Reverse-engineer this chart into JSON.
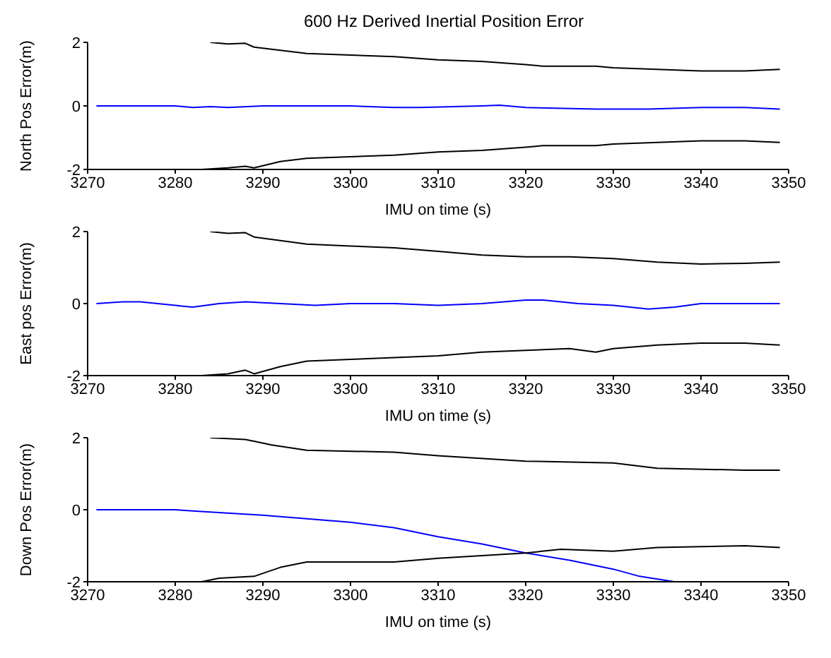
{
  "chart_data": [
    {
      "type": "line",
      "title": "600 Hz Derived Inertial Position Error",
      "xlabel": "IMU on time (s)",
      "ylabel": "North Pos Error(m)",
      "xlim": [
        3270,
        3350
      ],
      "xticks": [
        3270,
        3280,
        3290,
        3300,
        3310,
        3320,
        3330,
        3340,
        3350
      ],
      "ylim": [
        -2,
        2
      ],
      "yticks": [
        -2,
        0,
        2
      ],
      "grid": false,
      "legend": false,
      "marker": "none",
      "line_style": "solid",
      "series": [
        {
          "color": "#0000ff",
          "x": [
            3271,
            3280,
            3282,
            3284,
            3286,
            3290,
            3300,
            3305,
            3308,
            3315,
            3317,
            3320,
            3328,
            3334,
            3340,
            3345,
            3349
          ],
          "values": [
            0,
            0,
            -0.05,
            -0.02,
            -0.05,
            0,
            0,
            -0.05,
            -0.05,
            0,
            0.02,
            -0.05,
            -0.1,
            -0.1,
            -0.05,
            -0.05,
            -0.1
          ]
        },
        {
          "color": "#000000",
          "x": [
            3284,
            3286,
            3288,
            3289,
            3292,
            3295,
            3300,
            3305,
            3310,
            3315,
            3320,
            3322,
            3328,
            3330,
            3335,
            3340,
            3345,
            3349
          ],
          "values": [
            2,
            1.95,
            1.97,
            1.85,
            1.75,
            1.65,
            1.6,
            1.55,
            1.45,
            1.4,
            1.3,
            1.25,
            1.25,
            1.2,
            1.15,
            1.1,
            1.1,
            1.15
          ]
        },
        {
          "color": "#000000",
          "x": [
            3283,
            3286,
            3288,
            3289,
            3292,
            3295,
            3300,
            3305,
            3310,
            3315,
            3320,
            3322,
            3328,
            3330,
            3335,
            3340,
            3345,
            3349
          ],
          "values": [
            -2,
            -1.95,
            -1.9,
            -1.95,
            -1.75,
            -1.65,
            -1.6,
            -1.55,
            -1.45,
            -1.4,
            -1.3,
            -1.25,
            -1.25,
            -1.2,
            -1.15,
            -1.1,
            -1.1,
            -1.15
          ]
        }
      ]
    },
    {
      "type": "line",
      "xlabel": "IMU on time (s)",
      "ylabel": "East pos Error(m)",
      "xlim": [
        3270,
        3350
      ],
      "xticks": [
        3270,
        3280,
        3290,
        3300,
        3310,
        3320,
        3330,
        3340,
        3350
      ],
      "ylim": [
        -2,
        2
      ],
      "yticks": [
        -2,
        0,
        2
      ],
      "grid": false,
      "legend": false,
      "marker": "none",
      "line_style": "solid",
      "series": [
        {
          "color": "#0000ff",
          "x": [
            3271,
            3274,
            3276,
            3280,
            3282,
            3285,
            3288,
            3292,
            3296,
            3300,
            3305,
            3310,
            3315,
            3320,
            3322,
            3326,
            3330,
            3334,
            3337,
            3340,
            3345,
            3349
          ],
          "values": [
            0,
            0.05,
            0.05,
            -0.05,
            -0.1,
            0,
            0.05,
            0,
            -0.05,
            0,
            0,
            -0.05,
            0,
            0.1,
            0.1,
            0,
            -0.05,
            -0.15,
            -0.1,
            0,
            0,
            0
          ]
        },
        {
          "color": "#000000",
          "x": [
            3284,
            3286,
            3288,
            3289,
            3292,
            3295,
            3300,
            3305,
            3310,
            3315,
            3320,
            3325,
            3330,
            3335,
            3340,
            3345,
            3349
          ],
          "values": [
            2,
            1.95,
            1.97,
            1.85,
            1.75,
            1.65,
            1.6,
            1.55,
            1.45,
            1.35,
            1.3,
            1.3,
            1.25,
            1.15,
            1.1,
            1.12,
            1.15
          ]
        },
        {
          "color": "#000000",
          "x": [
            3283,
            3286,
            3288,
            3289,
            3292,
            3295,
            3300,
            3305,
            3310,
            3315,
            3320,
            3325,
            3328,
            3330,
            3335,
            3340,
            3345,
            3349
          ],
          "values": [
            -2,
            -1.95,
            -1.85,
            -1.95,
            -1.75,
            -1.6,
            -1.55,
            -1.5,
            -1.45,
            -1.35,
            -1.3,
            -1.25,
            -1.35,
            -1.25,
            -1.15,
            -1.1,
            -1.1,
            -1.15
          ]
        }
      ]
    },
    {
      "type": "line",
      "xlabel": "IMU on time (s)",
      "ylabel": "Down Pos Error(m)",
      "xlim": [
        3270,
        3350
      ],
      "xticks": [
        3270,
        3280,
        3290,
        3300,
        3310,
        3320,
        3330,
        3340,
        3350
      ],
      "ylim": [
        -2,
        2
      ],
      "yticks": [
        -2,
        0,
        2
      ],
      "grid": false,
      "legend": false,
      "marker": "none",
      "line_style": "solid",
      "series": [
        {
          "color": "#0000ff",
          "x": [
            3271,
            3280,
            3283,
            3290,
            3295,
            3300,
            3305,
            3310,
            3315,
            3320,
            3325,
            3330,
            3333,
            3337
          ],
          "values": [
            0,
            0,
            -0.05,
            -0.15,
            -0.25,
            -0.35,
            -0.5,
            -0.75,
            -0.95,
            -1.2,
            -1.4,
            -1.65,
            -1.85,
            -2
          ]
        },
        {
          "color": "#000000",
          "x": [
            3284,
            3288,
            3289,
            3291,
            3295,
            3305,
            3310,
            3320,
            3330,
            3335,
            3345,
            3349
          ],
          "values": [
            2,
            1.95,
            1.9,
            1.8,
            1.65,
            1.6,
            1.5,
            1.35,
            1.3,
            1.15,
            1.1,
            1.1
          ]
        },
        {
          "color": "#000000",
          "x": [
            3283,
            3285,
            3289,
            3292,
            3295,
            3305,
            3310,
            3320,
            3324,
            3330,
            3335,
            3345,
            3349
          ],
          "values": [
            -2,
            -1.9,
            -1.85,
            -1.6,
            -1.45,
            -1.45,
            -1.35,
            -1.2,
            -1.1,
            -1.15,
            -1.05,
            -1.0,
            -1.05
          ]
        }
      ]
    }
  ]
}
